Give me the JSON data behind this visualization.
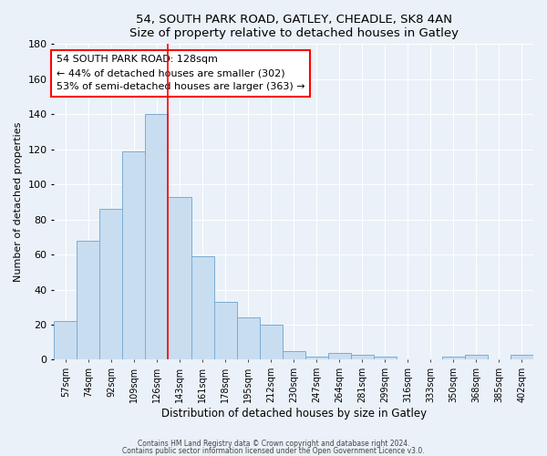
{
  "title": "54, SOUTH PARK ROAD, GATLEY, CHEADLE, SK8 4AN",
  "subtitle": "Size of property relative to detached houses in Gatley",
  "xlabel": "Distribution of detached houses by size in Gatley",
  "ylabel": "Number of detached properties",
  "bar_labels": [
    "57sqm",
    "74sqm",
    "92sqm",
    "109sqm",
    "126sqm",
    "143sqm",
    "161sqm",
    "178sqm",
    "195sqm",
    "212sqm",
    "230sqm",
    "247sqm",
    "264sqm",
    "281sqm",
    "299sqm",
    "316sqm",
    "333sqm",
    "350sqm",
    "368sqm",
    "385sqm",
    "402sqm"
  ],
  "bar_values": [
    22,
    68,
    86,
    119,
    140,
    93,
    59,
    33,
    24,
    20,
    5,
    2,
    4,
    3,
    2,
    0,
    0,
    2,
    3,
    0,
    3
  ],
  "bar_color": "#c9ddf0",
  "bar_edge_color": "#7aadd4",
  "ylim": [
    0,
    180
  ],
  "yticks": [
    0,
    20,
    40,
    60,
    80,
    100,
    120,
    140,
    160,
    180
  ],
  "red_line_index": 5,
  "annotation_title": "54 SOUTH PARK ROAD: 128sqm",
  "annotation_line1": "← 44% of detached houses are smaller (302)",
  "annotation_line2": "53% of semi-detached houses are larger (363) →",
  "footer1": "Contains HM Land Registry data © Crown copyright and database right 2024.",
  "footer2": "Contains public sector information licensed under the Open Government Licence v3.0.",
  "bg_color": "#eaf1f8",
  "plot_bg_color": "#eaf1f8",
  "grid_color": "#ffffff"
}
